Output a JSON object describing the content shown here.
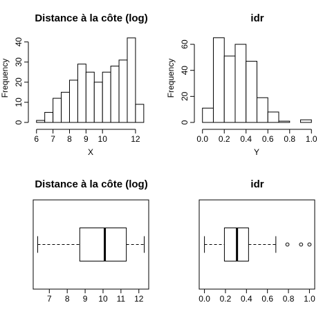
{
  "chart_data": [
    {
      "type": "bar",
      "title": "Distance à la côte (log)",
      "xlabel": "X",
      "ylabel": "Frequency",
      "xlim": [
        5.8,
        12.8
      ],
      "ylim": [
        0,
        44
      ],
      "xticks": [
        6,
        7,
        8,
        9,
        10,
        12
      ],
      "yticks": [
        0,
        10,
        20,
        30,
        40
      ],
      "bins": [
        [
          6.0,
          6.5
        ],
        [
          6.5,
          7.0
        ],
        [
          7.0,
          7.5
        ],
        [
          7.5,
          8.0
        ],
        [
          8.0,
          8.5
        ],
        [
          8.5,
          9.0
        ],
        [
          9.0,
          9.5
        ],
        [
          9.5,
          10.0
        ],
        [
          10.0,
          10.5
        ],
        [
          10.5,
          11.0
        ],
        [
          11.0,
          11.5
        ],
        [
          11.5,
          12.0
        ],
        [
          12.0,
          12.5
        ]
      ],
      "values": [
        1,
        5,
        12,
        15,
        21,
        29,
        25,
        20,
        25,
        28,
        31,
        42,
        9
      ]
    },
    {
      "type": "bar",
      "title": "idr",
      "xlabel": "Y",
      "ylabel": "Frequency",
      "xlim": [
        -0.03,
        1.03
      ],
      "ylim": [
        0,
        68
      ],
      "xticks": [
        0.0,
        0.2,
        0.4,
        0.6,
        0.8,
        1.0
      ],
      "xtick_labels": [
        "0.0",
        "0.2",
        "0.4",
        "0.6",
        "0.8",
        "1.0"
      ],
      "yticks": [
        0,
        20,
        40,
        60
      ],
      "bins": [
        [
          0.0,
          0.1
        ],
        [
          0.1,
          0.2
        ],
        [
          0.2,
          0.3
        ],
        [
          0.3,
          0.4
        ],
        [
          0.4,
          0.5
        ],
        [
          0.5,
          0.6
        ],
        [
          0.6,
          0.7
        ],
        [
          0.7,
          0.8
        ],
        [
          0.8,
          0.9
        ],
        [
          0.9,
          1.0
        ]
      ],
      "values": [
        11,
        65,
        51,
        60,
        47,
        19,
        8,
        1,
        0,
        2
      ]
    },
    {
      "type": "box",
      "title": "Distance à la côte (log)",
      "xlim": [
        6.1,
        12.55
      ],
      "xticks": [
        7,
        8,
        9,
        10,
        11,
        12
      ],
      "whisker_low": 6.35,
      "q1": 8.7,
      "median": 10.1,
      "q3": 11.3,
      "whisker_high": 12.3,
      "outliers": []
    },
    {
      "type": "box",
      "title": "idr",
      "xlim": [
        -0.05,
        1.05
      ],
      "xticks": [
        0.0,
        0.2,
        0.4,
        0.6,
        0.8,
        1.0
      ],
      "xtick_labels": [
        "0.0",
        "0.2",
        "0.4",
        "0.6",
        "0.8",
        "1.0"
      ],
      "whisker_low": 0.0,
      "q1": 0.19,
      "median": 0.31,
      "q3": 0.42,
      "whisker_high": 0.68,
      "outliers": [
        0.79,
        0.92,
        1.0
      ]
    }
  ]
}
